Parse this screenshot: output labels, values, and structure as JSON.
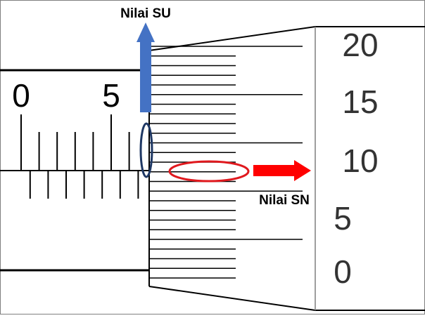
{
  "title": "",
  "labels": {
    "su": "Nilai SU",
    "sn": "Nilai SN"
  },
  "sleeve": {
    "numbers": [
      "0",
      "5"
    ]
  },
  "thimble": {
    "numbers": [
      "20",
      "15",
      "10",
      "5",
      "0"
    ]
  },
  "colors": {
    "su_arrow": "#4472C4",
    "su_ellipse": "#1F3864",
    "sn_arrow": "#FF0000",
    "sn_ellipse": "#E0191E",
    "lines": "#000000",
    "frame": "#7F7F7F"
  }
}
